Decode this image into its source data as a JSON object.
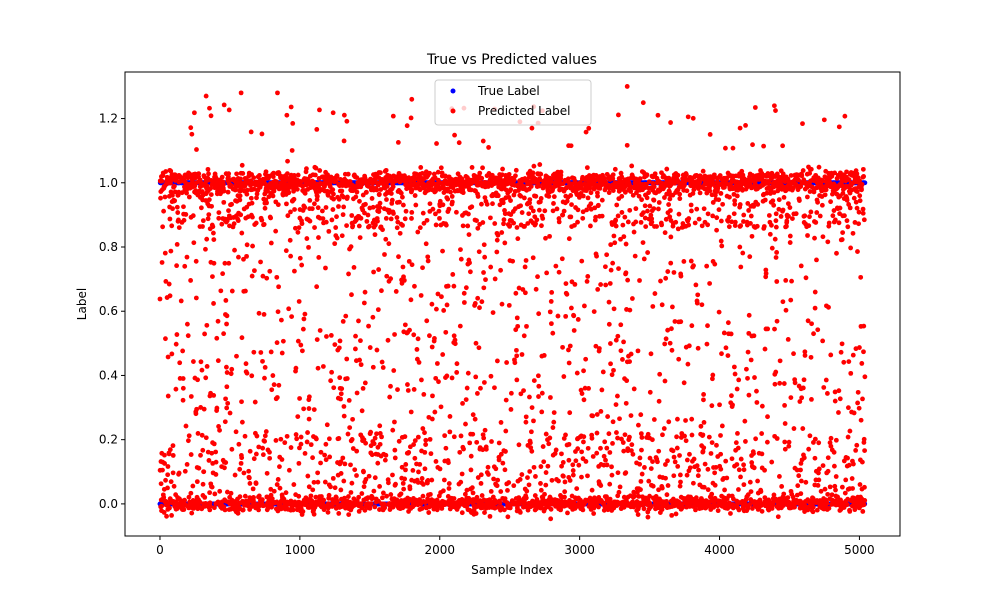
{
  "chart_data": {
    "type": "scatter",
    "title": "True vs Predicted values",
    "xlabel": "Sample Index",
    "ylabel": "Label",
    "xlim": [
      -250,
      5290
    ],
    "ylim": [
      -0.1,
      1.345
    ],
    "x_ticks": [
      0,
      1000,
      2000,
      3000,
      4000,
      5000
    ],
    "y_ticks": [
      0.0,
      0.2,
      0.4,
      0.6,
      0.8,
      1.0,
      1.2
    ],
    "x_tick_labels": [
      "0",
      "1000",
      "2000",
      "3000",
      "4000",
      "5000"
    ],
    "y_tick_labels": [
      "0.0",
      "0.2",
      "0.4",
      "0.6",
      "0.8",
      "1.0",
      "1.2"
    ],
    "grid": false,
    "legend_position": "top-center",
    "n_points": 5040,
    "series": [
      {
        "name": "True Label",
        "color": "#0000ff",
        "marker": "circle",
        "levels": [
          0,
          1
        ],
        "fraction_at_1": 0.52
      },
      {
        "name": "Predicted Label",
        "color": "#ff0000",
        "marker": "circle",
        "distribution_notes": "dense clusters near 0.0 and 1.0, diffuse spread across 0–1, sparse outliers up to ~1.28",
        "notable_points": [
          {
            "x": 3340,
            "y": 1.3
          },
          {
            "x": 840,
            "y": 1.28
          },
          {
            "x": 580,
            "y": 1.28
          },
          {
            "x": 330,
            "y": 1.27
          },
          {
            "x": 1800,
            "y": 1.26
          },
          {
            "x": 5000,
            "y": 1.0
          },
          {
            "x": 4420,
            "y": -0.04
          },
          {
            "x": 3100,
            "y": -0.03
          }
        ]
      }
    ]
  }
}
